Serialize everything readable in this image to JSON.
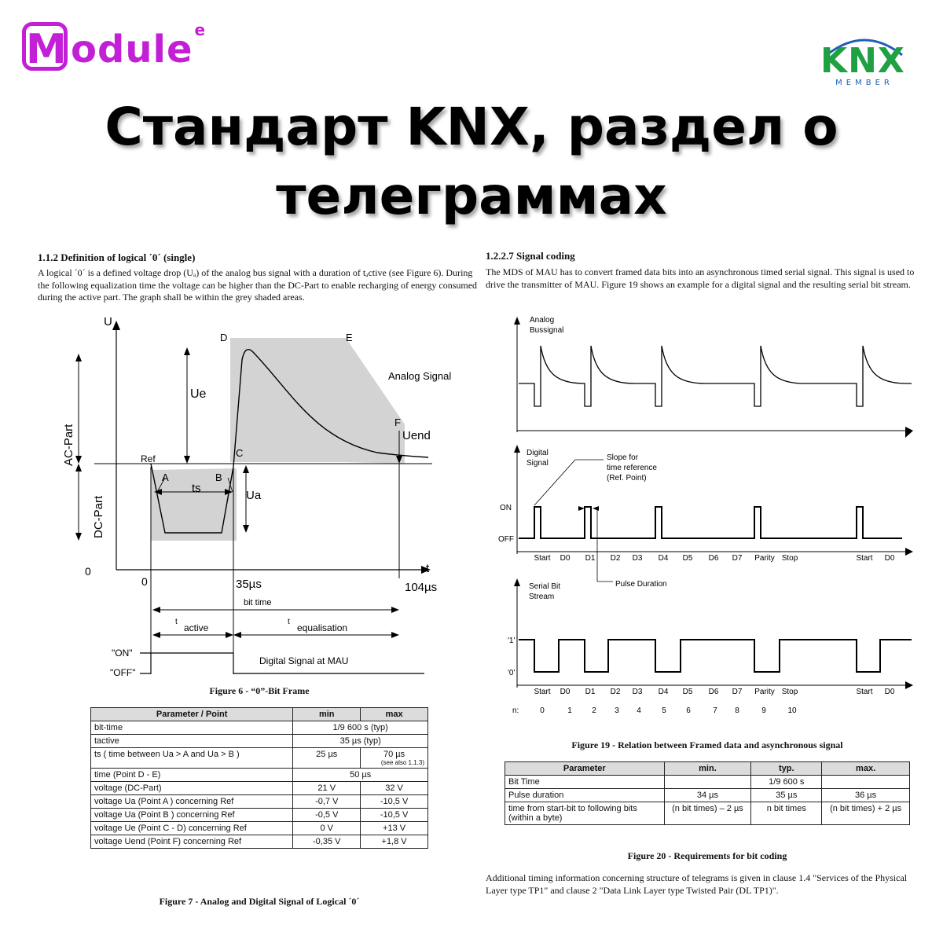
{
  "brand": {
    "logo_letter": "M",
    "logo_rest": "odule",
    "logo_sup": "e",
    "knx_text": "KNX",
    "knx_member": "MEMBER"
  },
  "title": {
    "line1": "Стандарт KNX, раздел о",
    "line2": "телеграммах"
  },
  "left": {
    "heading": "1.1.2   Definition of logical ´0´ (single)",
    "para": "A logical ´0´ is a defined voltage drop (Uₐ) of the analog bus signal with a duration of tₐctive (see Figure 6). During the following equalization time the voltage can be higher than the DC-Part to enable recharging of energy consumed during the active part. The graph shall be within the grey shaded areas.",
    "fig_labels": {
      "U": "U",
      "D": "D",
      "E": "E",
      "analog": "Analog Signal",
      "ue": "Ue",
      "acpart": "AC-Part",
      "dcpart": "DC-Part",
      "f": "F",
      "uend": "Uend",
      "ref": "Ref",
      "c": "C",
      "a": "A",
      "b": "B",
      "ts": "ts",
      "ua": "Ua",
      "zero_y": "0",
      "zero_x": "0",
      "t": "t",
      "t35": "35µs",
      "t104": "104µs",
      "bittime": "bit time",
      "tactive_t": "t",
      "tactive_sub": "active",
      "teq_t": "t",
      "teq_sub": "equalisation",
      "on": "\"ON\"",
      "off": "\"OFF\"",
      "digital": "Digital Signal at MAU"
    },
    "fig6_caption": "Figure 6 - “0”-Bit Frame",
    "table": {
      "headers": [
        "Parameter / Point",
        "min",
        "max"
      ],
      "rows": [
        [
          "bit-time",
          "1/9 600 s (typ)",
          ""
        ],
        [
          "tactive",
          "35 µs (typ)",
          ""
        ],
        [
          "ts ( time between Ua > A  and Ua > B )",
          "25 µs",
          "70 µs"
        ],
        [
          "time (Point D - E)",
          "50 µs",
          ""
        ],
        [
          "voltage (DC-Part)",
          "21 V",
          "32 V"
        ],
        [
          "voltage Ua (Point A ) concerning Ref",
          "-0,7 V",
          "-10,5 V"
        ],
        [
          "voltage Ua (Point B ) concerning Ref",
          "-0,5 V",
          "-10,5 V"
        ],
        [
          "voltage Ue (Point C - D) concerning Ref",
          "0 V",
          "+13 V"
        ],
        [
          "voltage Uend (Point F) concerning Ref",
          "-0,35 V",
          "+1,8 V"
        ]
      ],
      "note": "(see also 1.1.3)"
    },
    "fig7_caption": "Figure 7 - Analog and Digital Signal of Logical ´0´"
  },
  "right": {
    "heading": "1.2.2.7   Signal coding",
    "para": "The MDS of MAU has to convert framed data bits into an asynchronous timed serial signal. This signal is used to drive the transmitter of MAU. Figure 19 shows an example for a digital signal and the resulting serial bit stream.",
    "fig_labels": {
      "analog1": "Analog",
      "analog2": "Bussignal",
      "digital1": "Digital",
      "digital2": "Signal",
      "slope1": "Slope for",
      "slope2": "time reference",
      "slope3": "(Ref. Point)",
      "on": "ON",
      "off": "OFF",
      "pulse": "Pulse Duration",
      "serial1": "Serial Bit",
      "serial2": "Stream",
      "one": "'1'",
      "zero": "'0'",
      "n": "n:"
    },
    "bits": [
      "Start",
      "D0",
      "D1",
      "D2",
      "D3",
      "D4",
      "D5",
      "D6",
      "D7",
      "Parity",
      "Stop",
      "Start",
      "D0"
    ],
    "nvals": [
      "0",
      "1",
      "2",
      "3",
      "4",
      "5",
      "6",
      "7",
      "8",
      "9",
      "10"
    ],
    "fig19_caption": "Figure 19 - Relation between Framed data and asynchronous signal",
    "table": {
      "headers": [
        "Parameter",
        "min.",
        "typ.",
        "max."
      ],
      "rows": [
        [
          "Bit Time",
          "",
          "1/9 600 s",
          ""
        ],
        [
          "Pulse duration",
          "34 µs",
          "35 µs",
          "36 µs"
        ],
        [
          "time from start-bit to following bits (within a byte)",
          "(n bit times) – 2 µs",
          "n bit times",
          "(n bit times) + 2 µs"
        ]
      ]
    },
    "fig20_caption": "Figure 20 - Requirements for bit coding",
    "footer": "Additional timing information concerning structure of telegrams is given in clause 1.4 \"Services of the Physical Layer type TP1\" and clause 2 \"Data Link Layer type Twisted Pair (DL TP1)\"."
  }
}
